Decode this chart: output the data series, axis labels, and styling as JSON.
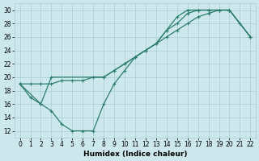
{
  "line1_x": [
    0,
    1,
    2,
    3,
    4,
    5,
    6,
    7,
    8,
    9,
    10,
    11,
    12,
    13,
    14,
    15,
    16,
    17,
    18,
    19,
    20,
    21,
    22
  ],
  "line1_y": [
    19,
    17,
    16,
    15,
    13,
    12,
    12,
    12,
    16,
    19,
    21,
    23,
    24,
    25,
    27,
    29,
    30,
    30,
    30,
    30,
    30,
    28,
    26
  ],
  "line2_x": [
    0,
    2,
    3,
    8,
    9,
    10,
    11,
    12,
    13,
    14,
    15,
    16,
    17,
    18,
    19,
    20,
    22
  ],
  "line2_y": [
    19,
    16,
    20,
    20,
    21,
    22,
    23,
    24,
    25,
    27,
    28,
    29.5,
    30,
    30,
    30,
    30,
    26
  ],
  "line3_x": [
    0,
    1,
    2,
    3,
    4,
    5,
    6,
    7,
    8,
    9,
    10,
    11,
    12,
    13,
    14,
    15,
    16,
    17,
    18,
    19,
    20,
    22
  ],
  "line3_y": [
    19,
    19,
    19,
    19,
    19.5,
    19.5,
    19.5,
    20,
    20,
    21,
    22,
    23,
    24,
    25,
    26,
    27,
    28,
    29,
    29.5,
    30,
    30,
    26
  ],
  "color": "#2e7d6e",
  "bg_color": "#cce8ed",
  "grid_color": "#a8cdd4",
  "xlabel": "Humidex (Indice chaleur)",
  "xlim": [
    -0.5,
    22.5
  ],
  "ylim": [
    11,
    31
  ],
  "xticks": [
    0,
    1,
    2,
    3,
    4,
    5,
    6,
    7,
    8,
    9,
    10,
    11,
    12,
    13,
    14,
    15,
    16,
    17,
    18,
    19,
    20,
    21,
    22
  ],
  "yticks": [
    12,
    14,
    16,
    18,
    20,
    22,
    24,
    26,
    28,
    30
  ],
  "label_fontsize": 6.5,
  "tick_fontsize": 5.5
}
